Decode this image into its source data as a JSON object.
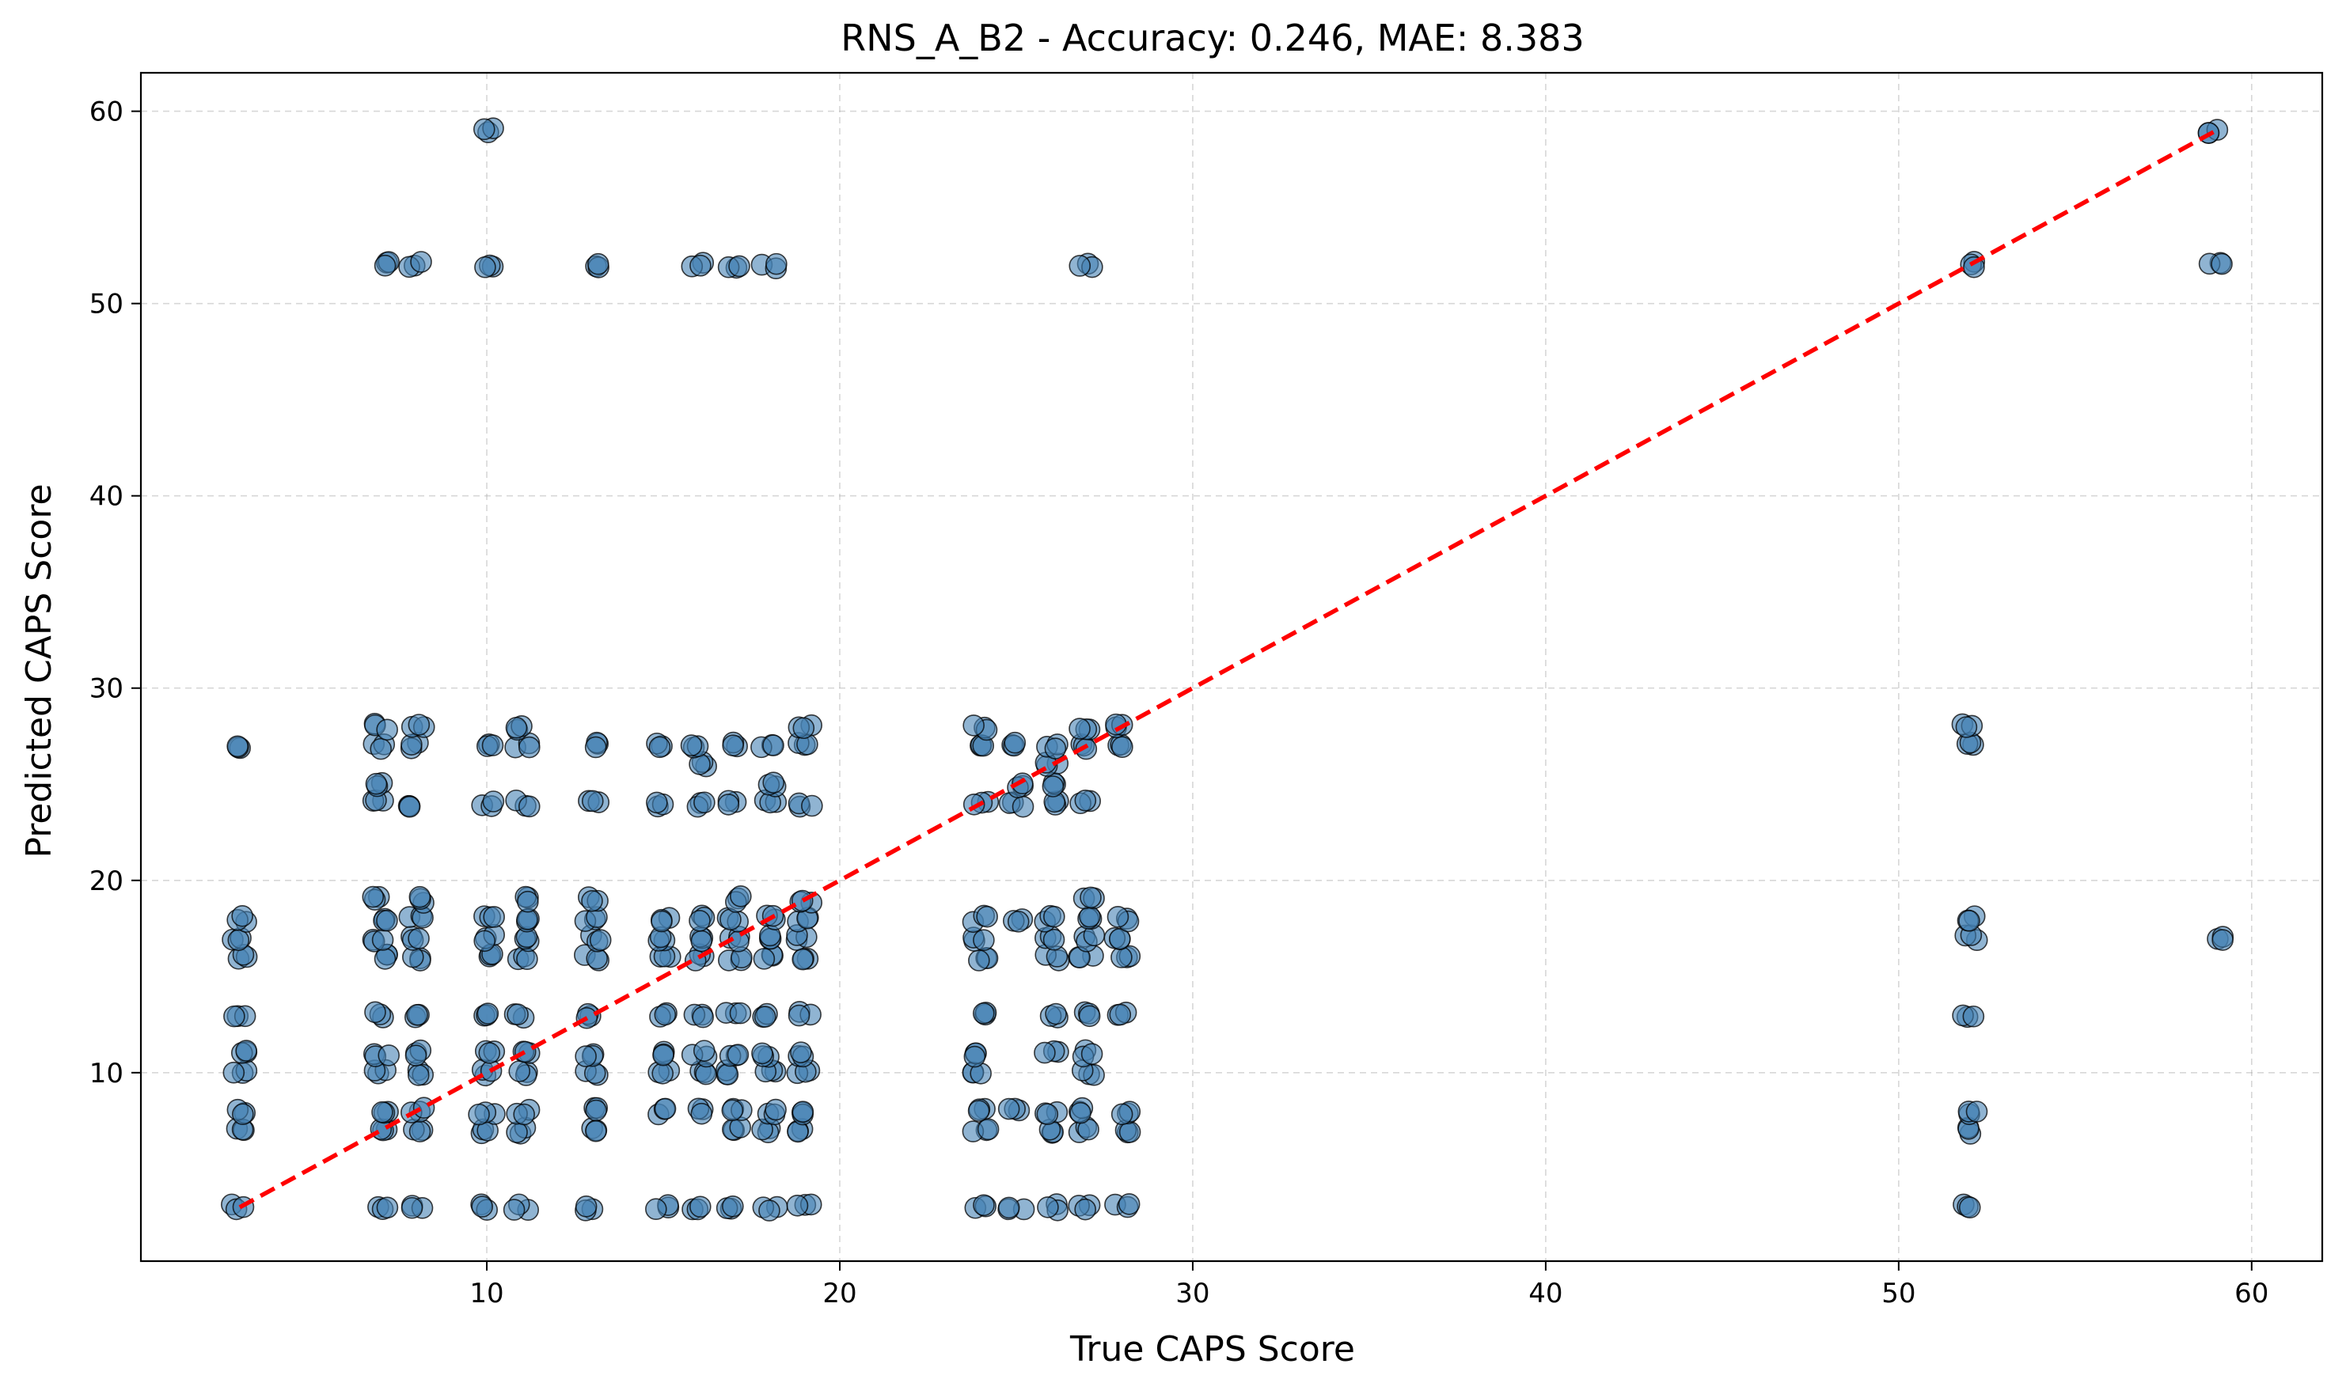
{
  "colors": {
    "point_fill": "#4682b4",
    "point_edge": "#000000",
    "reference_line": "#ff0000",
    "grid": "#b0b0b0",
    "axes": "#000000"
  },
  "chart_data": {
    "type": "scatter",
    "title": "RNS_A_B2 - Accuracy: 0.246, MAE: 8.383",
    "xlabel": "True CAPS Score",
    "ylabel": "Predicted CAPS Score",
    "xlim": [
      0.2,
      62.0
    ],
    "ylim": [
      0.2,
      62.0
    ],
    "xticks": [
      10,
      20,
      30,
      40,
      50,
      60
    ],
    "yticks": [
      10,
      20,
      30,
      40,
      50,
      60
    ],
    "grid": true,
    "reference_line": {
      "style": "dashed",
      "from": [
        3,
        3
      ],
      "to": [
        59,
        59
      ]
    },
    "series": [
      {
        "points": [
          [
            3,
            3
          ],
          [
            3,
            7
          ],
          [
            3,
            8
          ],
          [
            3,
            10
          ],
          [
            3,
            11
          ],
          [
            3,
            13
          ],
          [
            3,
            16
          ],
          [
            3,
            17
          ],
          [
            3,
            18
          ],
          [
            3,
            27
          ],
          [
            7,
            3
          ],
          [
            7,
            7
          ],
          [
            7,
            8
          ],
          [
            7,
            10
          ],
          [
            7,
            11
          ],
          [
            7,
            13
          ],
          [
            7,
            16
          ],
          [
            7,
            17
          ],
          [
            7,
            18
          ],
          [
            7,
            19
          ],
          [
            7,
            24
          ],
          [
            7,
            25
          ],
          [
            7,
            27
          ],
          [
            7,
            28
          ],
          [
            7,
            52
          ],
          [
            8,
            3
          ],
          [
            8,
            7
          ],
          [
            8,
            8
          ],
          [
            8,
            10
          ],
          [
            8,
            11
          ],
          [
            8,
            13
          ],
          [
            8,
            16
          ],
          [
            8,
            17
          ],
          [
            8,
            18
          ],
          [
            8,
            19
          ],
          [
            8,
            24
          ],
          [
            8,
            27
          ],
          [
            8,
            28
          ],
          [
            8,
            52
          ],
          [
            10,
            3
          ],
          [
            10,
            7
          ],
          [
            10,
            8
          ],
          [
            10,
            10
          ],
          [
            10,
            11
          ],
          [
            10,
            13
          ],
          [
            10,
            16
          ],
          [
            10,
            17
          ],
          [
            10,
            18
          ],
          [
            10,
            24
          ],
          [
            10,
            27
          ],
          [
            10,
            52
          ],
          [
            10,
            59
          ],
          [
            11,
            3
          ],
          [
            11,
            7
          ],
          [
            11,
            8
          ],
          [
            11,
            10
          ],
          [
            11,
            11
          ],
          [
            11,
            13
          ],
          [
            11,
            16
          ],
          [
            11,
            17
          ],
          [
            11,
            18
          ],
          [
            11,
            19
          ],
          [
            11,
            24
          ],
          [
            11,
            27
          ],
          [
            11,
            28
          ],
          [
            13,
            3
          ],
          [
            13,
            7
          ],
          [
            13,
            8
          ],
          [
            13,
            10
          ],
          [
            13,
            11
          ],
          [
            13,
            13
          ],
          [
            13,
            16
          ],
          [
            13,
            17
          ],
          [
            13,
            18
          ],
          [
            13,
            19
          ],
          [
            13,
            24
          ],
          [
            13,
            27
          ],
          [
            13,
            52
          ],
          [
            15,
            3
          ],
          [
            15,
            8
          ],
          [
            15,
            10
          ],
          [
            15,
            11
          ],
          [
            15,
            13
          ],
          [
            15,
            16
          ],
          [
            15,
            17
          ],
          [
            15,
            18
          ],
          [
            15,
            24
          ],
          [
            15,
            27
          ],
          [
            16,
            3
          ],
          [
            16,
            8
          ],
          [
            16,
            10
          ],
          [
            16,
            11
          ],
          [
            16,
            13
          ],
          [
            16,
            16
          ],
          [
            16,
            17
          ],
          [
            16,
            18
          ],
          [
            16,
            24
          ],
          [
            16,
            26
          ],
          [
            16,
            27
          ],
          [
            16,
            52
          ],
          [
            17,
            3
          ],
          [
            17,
            7
          ],
          [
            17,
            8
          ],
          [
            17,
            10
          ],
          [
            17,
            11
          ],
          [
            17,
            13
          ],
          [
            17,
            16
          ],
          [
            17,
            17
          ],
          [
            17,
            18
          ],
          [
            17,
            19
          ],
          [
            17,
            24
          ],
          [
            17,
            27
          ],
          [
            17,
            52
          ],
          [
            18,
            3
          ],
          [
            18,
            7
          ],
          [
            18,
            8
          ],
          [
            18,
            10
          ],
          [
            18,
            11
          ],
          [
            18,
            13
          ],
          [
            18,
            16
          ],
          [
            18,
            17
          ],
          [
            18,
            18
          ],
          [
            18,
            24
          ],
          [
            18,
            25
          ],
          [
            18,
            27
          ],
          [
            18,
            52
          ],
          [
            19,
            3
          ],
          [
            19,
            7
          ],
          [
            19,
            8
          ],
          [
            19,
            10
          ],
          [
            19,
            11
          ],
          [
            19,
            13
          ],
          [
            19,
            16
          ],
          [
            19,
            17
          ],
          [
            19,
            18
          ],
          [
            19,
            19
          ],
          [
            19,
            24
          ],
          [
            19,
            27
          ],
          [
            19,
            28
          ],
          [
            24,
            3
          ],
          [
            24,
            7
          ],
          [
            24,
            8
          ],
          [
            24,
            10
          ],
          [
            24,
            11
          ],
          [
            24,
            13
          ],
          [
            24,
            16
          ],
          [
            24,
            17
          ],
          [
            24,
            18
          ],
          [
            24,
            24
          ],
          [
            24,
            27
          ],
          [
            24,
            28
          ],
          [
            25,
            3
          ],
          [
            25,
            8
          ],
          [
            25,
            18
          ],
          [
            25,
            24
          ],
          [
            25,
            25
          ],
          [
            25,
            27
          ],
          [
            26,
            3
          ],
          [
            26,
            7
          ],
          [
            26,
            8
          ],
          [
            26,
            11
          ],
          [
            26,
            13
          ],
          [
            26,
            16
          ],
          [
            26,
            17
          ],
          [
            26,
            18
          ],
          [
            26,
            24
          ],
          [
            26,
            25
          ],
          [
            26,
            26
          ],
          [
            26,
            27
          ],
          [
            27,
            3
          ],
          [
            27,
            7
          ],
          [
            27,
            8
          ],
          [
            27,
            10
          ],
          [
            27,
            11
          ],
          [
            27,
            13
          ],
          [
            27,
            16
          ],
          [
            27,
            17
          ],
          [
            27,
            18
          ],
          [
            27,
            19
          ],
          [
            27,
            24
          ],
          [
            27,
            27
          ],
          [
            27,
            28
          ],
          [
            27,
            52
          ],
          [
            28,
            3
          ],
          [
            28,
            7
          ],
          [
            28,
            8
          ],
          [
            28,
            13
          ],
          [
            28,
            16
          ],
          [
            28,
            17
          ],
          [
            28,
            18
          ],
          [
            28,
            27
          ],
          [
            28,
            28
          ],
          [
            52,
            3
          ],
          [
            52,
            7
          ],
          [
            52,
            8
          ],
          [
            52,
            13
          ],
          [
            52,
            17
          ],
          [
            52,
            18
          ],
          [
            52,
            27
          ],
          [
            52,
            28
          ],
          [
            52,
            52
          ],
          [
            59,
            17
          ],
          [
            59,
            52
          ],
          [
            59,
            59
          ]
        ]
      }
    ]
  }
}
